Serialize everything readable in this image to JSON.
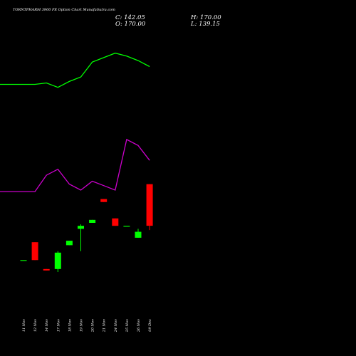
{
  "header": {
    "title": "TORNTPHARM 3900  PE Option  Chart MunafaSutra.com",
    "close": "C: 142.05",
    "open": "O: 170.00",
    "high": "H: 170.00",
    "low": "L: 139.15"
  },
  "colors": {
    "background": "#000000",
    "up": "#00ff00",
    "down": "#ff0000",
    "upper_band": "#00ff00",
    "lower_band": "#cc00cc",
    "text": "#ffffff"
  },
  "chart_data": {
    "type": "candlestick",
    "title": "TORNTPHARM 3900  PE Option  Chart MunafaSutra.com",
    "categories": [
      "11 Nov",
      "12 Nov",
      "14 Nov",
      "17 Nov",
      "18 Nov",
      "19 Nov",
      "20 Nov",
      "21 Nov",
      "24 Nov",
      "25 Nov",
      "26 Nov",
      "09 Dec"
    ],
    "candles": [
      {
        "date": "11 Nov",
        "open": 119,
        "high": 119,
        "low": 119,
        "close": 119
      },
      {
        "date": "12 Nov",
        "open": 131,
        "high": 131,
        "low": 119,
        "close": 119
      },
      {
        "date": "14 Nov",
        "open": 113,
        "high": 113,
        "low": 112,
        "close": 112
      },
      {
        "date": "17 Nov",
        "open": 113,
        "high": 125,
        "low": 111,
        "close": 124
      },
      {
        "date": "18 Nov",
        "open": 129,
        "high": 132,
        "low": 129,
        "close": 132
      },
      {
        "date": "19 Nov",
        "open": 140,
        "high": 143,
        "low": 125,
        "close": 142
      },
      {
        "date": "20 Nov",
        "open": 144,
        "high": 146,
        "low": 144,
        "close": 146
      },
      {
        "date": "21 Nov",
        "open": 160,
        "high": 160,
        "low": 158,
        "close": 158
      },
      {
        "date": "24 Nov",
        "open": 147,
        "high": 147,
        "low": 142,
        "close": 142
      },
      {
        "date": "25 Nov",
        "open": 142,
        "high": 142,
        "low": 142,
        "close": 142
      },
      {
        "date": "26 Nov",
        "open": 134,
        "high": 140,
        "low": 134,
        "close": 138
      },
      {
        "date": "09 Dec",
        "open": 170,
        "high": 170,
        "low": 139.15,
        "close": 142.05
      }
    ],
    "series": [
      {
        "role": "upper_band",
        "color": "#00ff00",
        "values": [
          237,
          237,
          238,
          235,
          239,
          242,
          252,
          255,
          258,
          256,
          253,
          249
        ]
      },
      {
        "role": "lower_band",
        "color": "#cc00cc",
        "values": [
          165,
          165,
          176,
          180,
          170,
          166,
          172,
          169,
          166,
          200,
          196,
          186
        ]
      }
    ],
    "ylim": [
      100,
      265
    ]
  }
}
